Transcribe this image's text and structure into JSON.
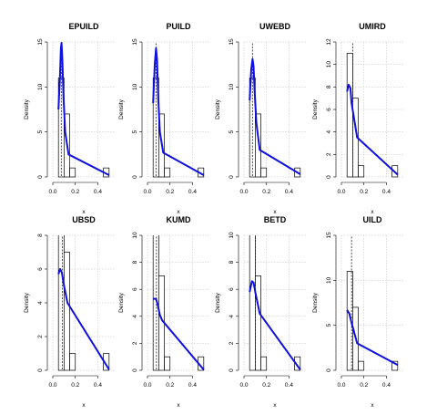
{
  "chart_data": [
    {
      "type": "bar",
      "title": "EPUILD",
      "xlabel": "x",
      "ylabel": "Density",
      "xlim": [
        0,
        0.55
      ],
      "ylim": [
        0,
        15
      ],
      "xticks": [
        "0.0",
        "0.2",
        "0.4"
      ],
      "yticks": [
        "0",
        "5",
        "10",
        "15"
      ],
      "bins": [
        [
          0.05,
          0.1,
          11
        ],
        [
          0.1,
          0.15,
          7
        ],
        [
          0.15,
          0.2,
          1
        ],
        [
          0.45,
          0.5,
          1
        ]
      ],
      "vline": 0.075,
      "density": [
        [
          0.05,
          7.5
        ],
        [
          0.063,
          11
        ],
        [
          0.072,
          14.3
        ],
        [
          0.078,
          14.9
        ],
        [
          0.085,
          13
        ],
        [
          0.095,
          9
        ],
        [
          0.11,
          5
        ],
        [
          0.14,
          2.5
        ],
        [
          0.5,
          0.2
        ]
      ]
    },
    {
      "type": "bar",
      "title": "PUILD",
      "xlabel": "x",
      "ylabel": "Density",
      "xlim": [
        0,
        0.55
      ],
      "ylim": [
        0,
        15
      ],
      "xticks": [
        "0.0",
        "0.2",
        "0.4"
      ],
      "yticks": [
        "0",
        "5",
        "10",
        "15"
      ],
      "bins": [
        [
          0.05,
          0.1,
          11
        ],
        [
          0.1,
          0.15,
          7
        ],
        [
          0.15,
          0.2,
          1
        ],
        [
          0.45,
          0.5,
          1
        ]
      ],
      "vline": 0.075,
      "density": [
        [
          0.05,
          8.2
        ],
        [
          0.065,
          12.5
        ],
        [
          0.076,
          14.3
        ],
        [
          0.085,
          13
        ],
        [
          0.095,
          9
        ],
        [
          0.11,
          5
        ],
        [
          0.14,
          2.7
        ],
        [
          0.5,
          0.2
        ]
      ]
    },
    {
      "type": "bar",
      "title": "UWEBD",
      "xlabel": "x",
      "ylabel": "Density",
      "xlim": [
        0,
        0.55
      ],
      "ylim": [
        0,
        15
      ],
      "xticks": [
        "0.0",
        "0.2",
        "0.4"
      ],
      "yticks": [
        "0",
        "5",
        "10",
        "15"
      ],
      "bins": [
        [
          0.05,
          0.1,
          11
        ],
        [
          0.1,
          0.15,
          7
        ],
        [
          0.15,
          0.2,
          1
        ],
        [
          0.45,
          0.5,
          1
        ]
      ],
      "vline": 0.075,
      "density": [
        [
          0.05,
          8.5
        ],
        [
          0.065,
          12
        ],
        [
          0.076,
          13.1
        ],
        [
          0.085,
          12.3
        ],
        [
          0.095,
          9.5
        ],
        [
          0.11,
          6
        ],
        [
          0.14,
          3
        ],
        [
          0.5,
          0.3
        ]
      ]
    },
    {
      "type": "bar",
      "title": "UMIRD",
      "xlabel": "x",
      "ylabel": "Density",
      "xlim": [
        0,
        0.55
      ],
      "ylim": [
        0,
        12
      ],
      "xticks": [
        "0.0",
        "0.2",
        "0.4"
      ],
      "yticks": [
        "0",
        "2",
        "4",
        "6",
        "8",
        "10",
        "12"
      ],
      "bins": [
        [
          0.05,
          0.1,
          11
        ],
        [
          0.1,
          0.15,
          7
        ],
        [
          0.15,
          0.2,
          1
        ],
        [
          0.45,
          0.5,
          1
        ]
      ],
      "vline": 0.1,
      "density": [
        [
          0.05,
          7.6
        ],
        [
          0.065,
          8.2
        ],
        [
          0.08,
          7.9
        ],
        [
          0.09,
          6.6
        ],
        [
          0.14,
          3.5
        ],
        [
          0.5,
          0.2
        ]
      ]
    },
    {
      "type": "bar",
      "title": "UBSD",
      "xlabel": "x",
      "ylabel": "Density",
      "xlim": [
        0,
        0.55
      ],
      "ylim": [
        0,
        8
      ],
      "xticks": [
        "0.0",
        "0.2",
        "0.4"
      ],
      "yticks": [
        "0",
        "2",
        "4",
        "6",
        "8"
      ],
      "bins": [
        [
          0.05,
          0.1,
          11
        ],
        [
          0.1,
          0.15,
          7
        ],
        [
          0.15,
          0.2,
          1
        ],
        [
          0.45,
          0.5,
          1
        ]
      ],
      "vline": 0.085,
      "density": [
        [
          0.05,
          5.7
        ],
        [
          0.065,
          6
        ],
        [
          0.08,
          5.8
        ],
        [
          0.1,
          5
        ],
        [
          0.13,
          4
        ],
        [
          0.5,
          0.05
        ]
      ]
    },
    {
      "type": "bar",
      "title": "KUMD",
      "xlabel": "x",
      "ylabel": "Density",
      "xlim": [
        0,
        0.55
      ],
      "ylim": [
        0,
        10
      ],
      "xticks": [
        "0.0",
        "0.2",
        "0.4"
      ],
      "yticks": [
        "0",
        "2",
        "4",
        "6",
        "8",
        "10"
      ],
      "bins": [
        [
          0.05,
          0.1,
          11
        ],
        [
          0.1,
          0.15,
          7
        ],
        [
          0.15,
          0.2,
          1
        ],
        [
          0.45,
          0.5,
          1
        ]
      ],
      "vline": 0.08,
      "density": [
        [
          0.05,
          5.3
        ],
        [
          0.075,
          5.3
        ],
        [
          0.09,
          4.9
        ],
        [
          0.11,
          4.1
        ],
        [
          0.13,
          3.7
        ],
        [
          0.5,
          0.05
        ]
      ]
    },
    {
      "type": "bar",
      "title": "BETD",
      "xlabel": "x",
      "ylabel": "Density",
      "xlim": [
        0,
        0.55
      ],
      "ylim": [
        0,
        10
      ],
      "xticks": [
        "0.0",
        "0.2",
        "0.4"
      ],
      "yticks": [
        "0",
        "2",
        "4",
        "6",
        "8",
        "10"
      ],
      "bins": [
        [
          0.05,
          0.1,
          11
        ],
        [
          0.1,
          0.15,
          7
        ],
        [
          0.15,
          0.2,
          1
        ],
        [
          0.45,
          0.5,
          1
        ]
      ],
      "vline": 0.1,
      "density": [
        [
          0.05,
          5.8
        ],
        [
          0.07,
          6.6
        ],
        [
          0.085,
          6.5
        ],
        [
          0.1,
          5.8
        ],
        [
          0.14,
          4.2
        ],
        [
          0.5,
          0.05
        ]
      ]
    },
    {
      "type": "bar",
      "title": "UILD",
      "xlabel": "x",
      "ylabel": "Density",
      "xlim": [
        0,
        0.55
      ],
      "ylim": [
        0,
        15
      ],
      "xticks": [
        "0.0",
        "0.2",
        "0.4"
      ],
      "yticks": [
        "0",
        "5",
        "10",
        "15"
      ],
      "bins": [
        [
          0.05,
          0.1,
          11
        ],
        [
          0.1,
          0.15,
          7
        ],
        [
          0.15,
          0.2,
          1
        ],
        [
          0.45,
          0.5,
          1
        ]
      ],
      "vline": 0.09,
      "density": [
        [
          0.05,
          6.7
        ],
        [
          0.07,
          6.3
        ],
        [
          0.09,
          5.3
        ],
        [
          0.14,
          3
        ],
        [
          0.5,
          0.6
        ]
      ]
    }
  ]
}
